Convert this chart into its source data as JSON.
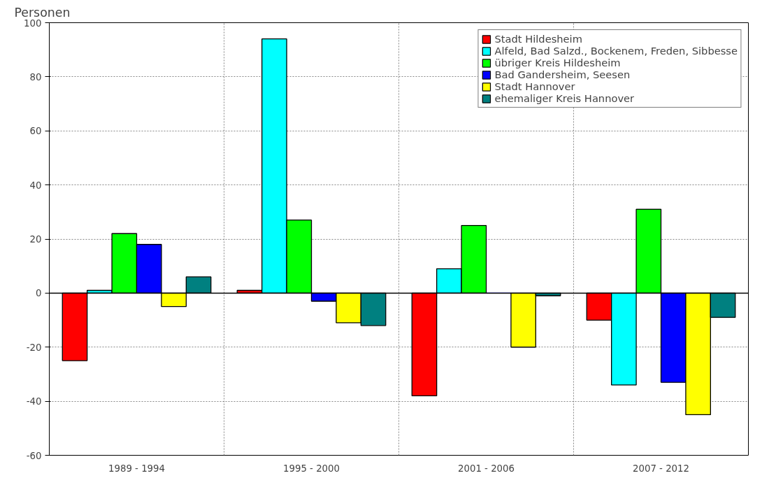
{
  "chart_data": {
    "type": "bar",
    "ylabel": "Personen",
    "categories": [
      "1989 - 1994",
      "1995 - 2000",
      "2001 - 2006",
      "2007 - 2012"
    ],
    "series": [
      {
        "name": "Stadt Hildesheim",
        "color": "#ff0000",
        "values": [
          -25,
          1,
          -38,
          -10
        ]
      },
      {
        "name": "Alfeld, Bad Salzd., Bockenem, Freden, Sibbesse",
        "color": "#00ffff",
        "values": [
          1,
          94,
          9,
          -34
        ]
      },
      {
        "name": "übriger Kreis Hildesheim",
        "color": "#00ff00",
        "values": [
          22,
          27,
          25,
          31
        ]
      },
      {
        "name": "Bad Gandersheim, Seesen",
        "color": "#0000ff",
        "values": [
          18,
          -3,
          0,
          -33
        ]
      },
      {
        "name": "Stadt Hannover",
        "color": "#ffff00",
        "values": [
          -5,
          -11,
          -20,
          -45
        ]
      },
      {
        "name": "ehemaliger Kreis Hannover",
        "color": "#008080",
        "values": [
          6,
          -12,
          -1,
          -9
        ]
      }
    ],
    "ylim": [
      -60,
      100
    ],
    "yticks": [
      -60,
      -40,
      -20,
      0,
      20,
      40,
      60,
      80,
      100
    ],
    "grid": true,
    "legend": "top right"
  }
}
